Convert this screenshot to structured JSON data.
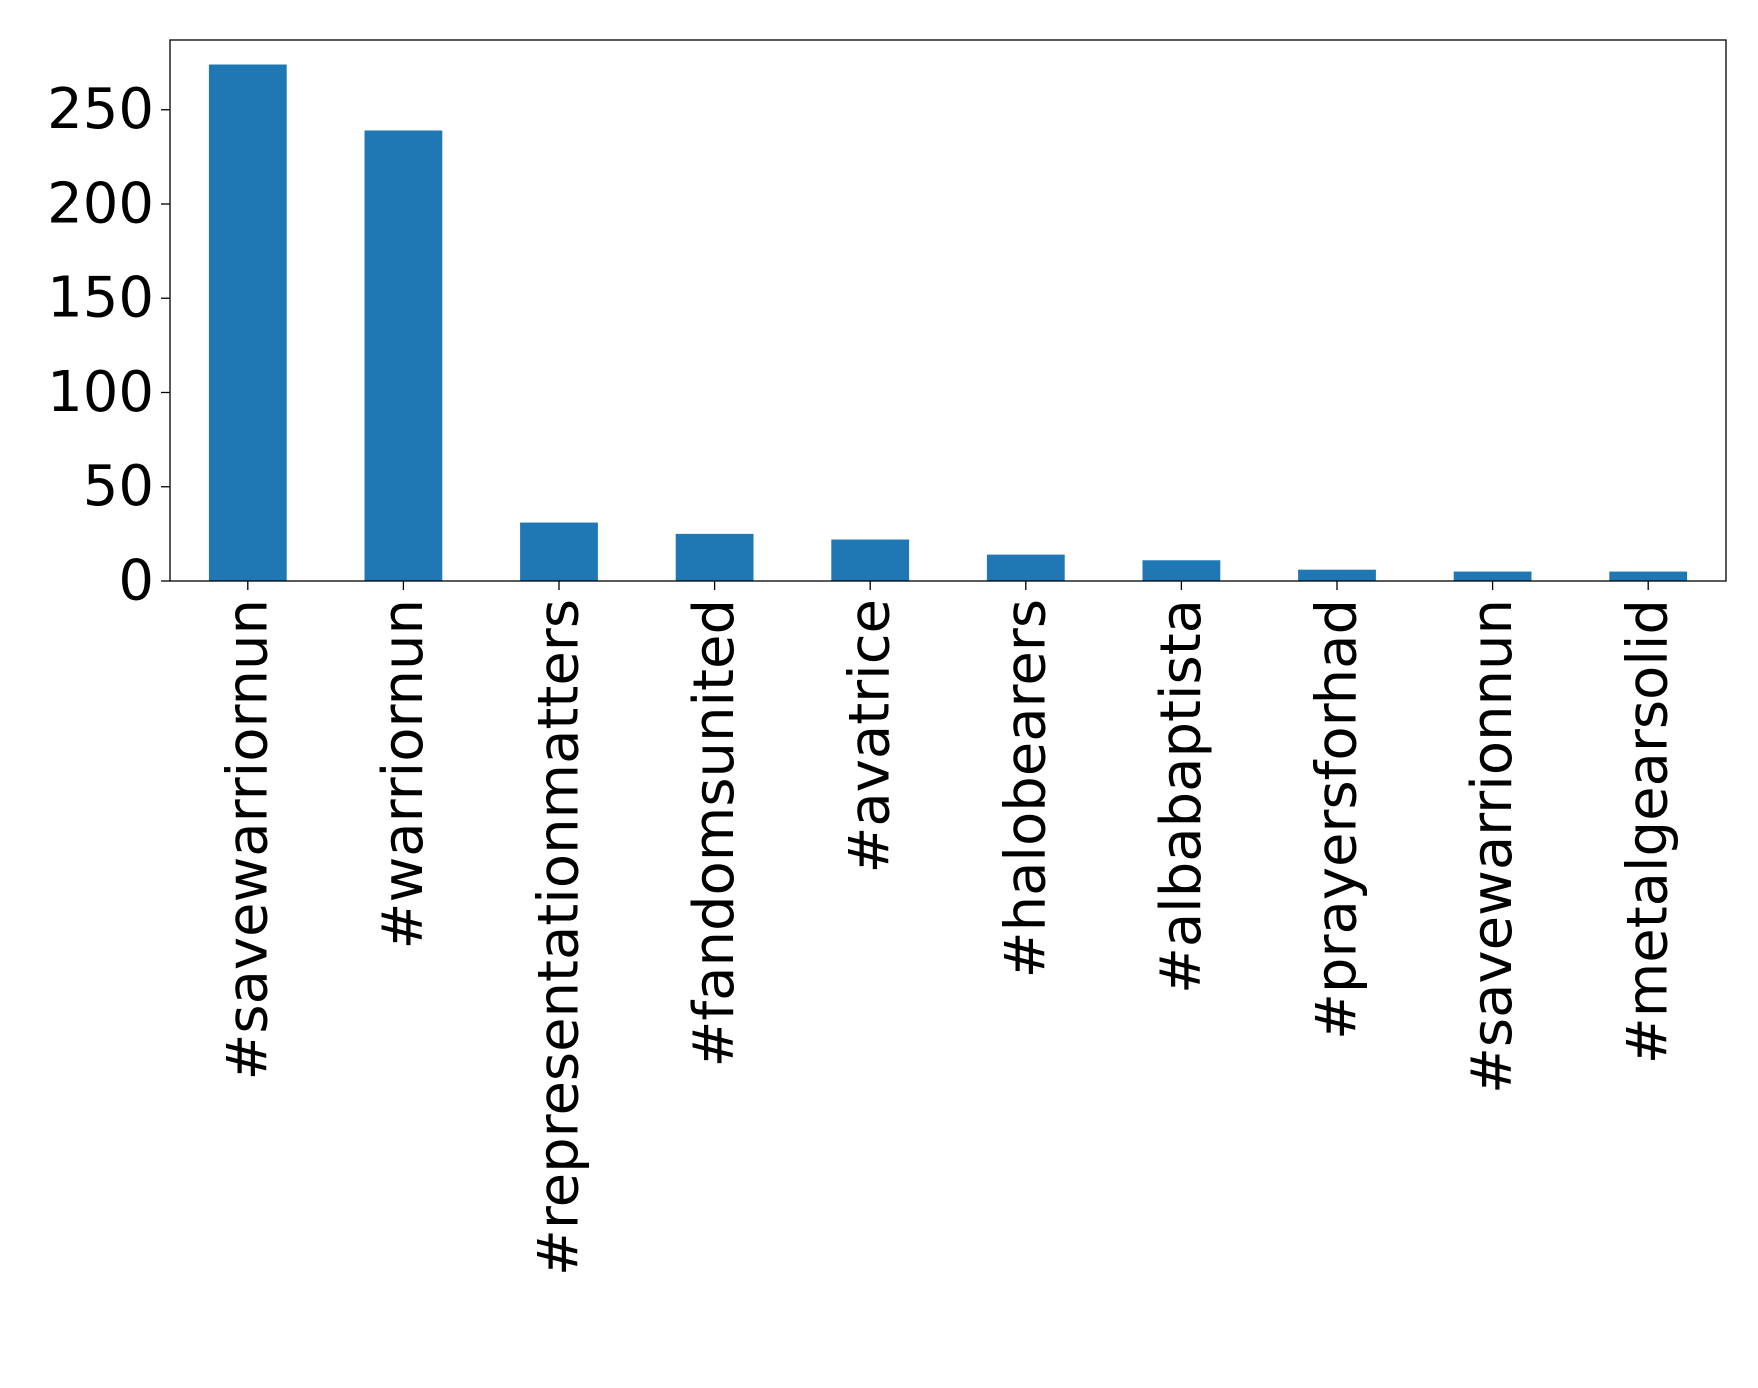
{
  "chart_data": {
    "type": "bar",
    "title": "",
    "xlabel": "",
    "ylabel": "",
    "categories": [
      "#savewarriornun",
      "#warriornun",
      "#representationmatters",
      "#fandomsunited",
      "#avatrice",
      "#halobearers",
      "#albabaptista",
      "#prayersforhad",
      "#savewarrionnun",
      "#metalgearsolid"
    ],
    "values": [
      274,
      239,
      31,
      25,
      22,
      14,
      11,
      6,
      5,
      5
    ],
    "ylim": [
      0,
      287
    ],
    "yticks": [
      0,
      50,
      100,
      150,
      200,
      250
    ],
    "ytick_labels": [
      "0",
      "50",
      "100",
      "150",
      "200",
      "250"
    ],
    "bar_color": "#1f77b4",
    "grid": false,
    "legend": "none"
  }
}
